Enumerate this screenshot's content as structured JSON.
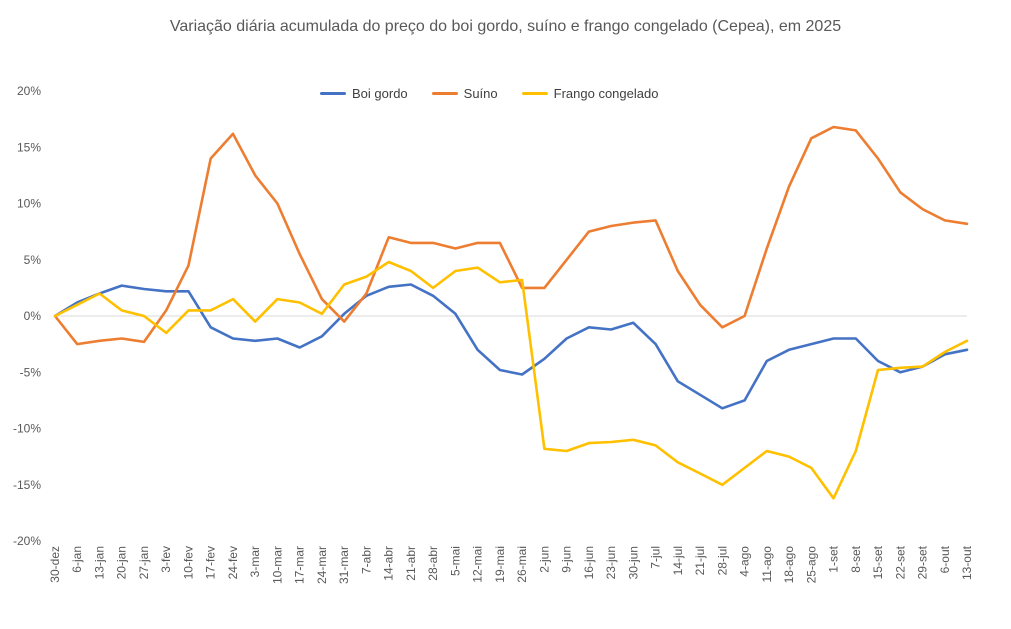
{
  "chart_data": {
    "type": "line",
    "title": "Variação diária acumulada do preço do boi gordo, suíno e frango congelado (Cepea), em 2025",
    "xlabel": "",
    "ylabel": "",
    "ylim": [
      -20,
      20
    ],
    "yticks": [
      20,
      15,
      10,
      5,
      0,
      -5,
      -10,
      -15,
      -20
    ],
    "ytick_labels": [
      "20%",
      "15%",
      "10%",
      "5%",
      "0%",
      "-5%",
      "-10%",
      "-15%",
      "-20%"
    ],
    "categories": [
      "30-dez",
      "6-jan",
      "13-jan",
      "20-jan",
      "27-jan",
      "3-fev",
      "10-fev",
      "17-fev",
      "24-fev",
      "3-mar",
      "10-mar",
      "17-mar",
      "24-mar",
      "31-mar",
      "7-abr",
      "14-abr",
      "21-abr",
      "28-abr",
      "5-mai",
      "12-mai",
      "19-mai",
      "26-mai",
      "2-jun",
      "9-jun",
      "16-jun",
      "23-jun",
      "30-jun",
      "7-jul",
      "14-jul",
      "21-jul",
      "28-jul",
      "4-ago",
      "11-ago",
      "18-ago",
      "25-ago",
      "1-set",
      "8-set",
      "15-set",
      "22-set",
      "29-set",
      "6-out",
      "13-out"
    ],
    "legend_position": "top-center",
    "series": [
      {
        "name": "Boi gordo",
        "color": "#4472C4",
        "values": [
          0,
          1.2,
          2.0,
          2.7,
          2.4,
          2.2,
          2.2,
          -1.0,
          -2.0,
          -2.2,
          -2.0,
          -2.8,
          -1.8,
          0.2,
          1.8,
          2.6,
          2.8,
          1.8,
          0.2,
          -3.0,
          -4.8,
          -5.2,
          -3.8,
          -2.0,
          -1.0,
          -1.2,
          -0.6,
          -2.5,
          -5.8,
          -7.0,
          -8.2,
          -7.5,
          -4.0,
          -3.0,
          -2.5,
          -2.0,
          -2.0,
          -4.0,
          -5.0,
          -4.5,
          -3.4,
          -3.0
        ]
      },
      {
        "name": "Suíno",
        "color": "#ED7D31",
        "values": [
          0,
          -2.5,
          -2.2,
          -2.0,
          -2.3,
          0.5,
          4.5,
          14.0,
          16.2,
          12.5,
          10.0,
          5.5,
          1.5,
          -0.5,
          2.0,
          7.0,
          6.5,
          6.5,
          6.0,
          6.5,
          6.5,
          2.5,
          2.5,
          5.0,
          7.5,
          8.0,
          8.3,
          8.5,
          4.0,
          1.0,
          -1.0,
          0.0,
          6.0,
          11.5,
          15.8,
          16.8,
          16.5,
          14.0,
          11.0,
          9.5,
          8.5,
          8.2
        ]
      },
      {
        "name": "Frango congelado",
        "color": "#FFC000",
        "values": [
          0,
          1.0,
          2.0,
          0.5,
          0.0,
          -1.5,
          0.5,
          0.5,
          1.5,
          -0.5,
          1.5,
          1.2,
          0.2,
          2.8,
          3.5,
          4.8,
          4.0,
          2.5,
          4.0,
          4.3,
          3.0,
          3.2,
          -11.8,
          -12.0,
          -11.3,
          -11.2,
          -11.0,
          -11.5,
          -13.0,
          -14.0,
          -15.0,
          -13.5,
          -12.0,
          -12.5,
          -13.5,
          -16.2,
          -12.0,
          -4.8,
          -4.6,
          -4.5,
          -3.2,
          -2.2
        ]
      }
    ]
  }
}
